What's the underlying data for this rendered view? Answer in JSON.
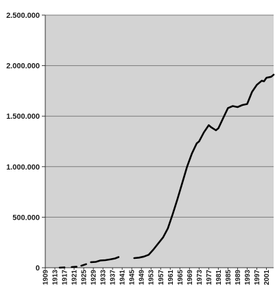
{
  "chart_data": {
    "type": "line",
    "title": "",
    "xlabel": "",
    "ylabel": "",
    "ylim": [
      0,
      2500000
    ],
    "y_ticks": [
      0,
      500000,
      1000000,
      1500000,
      2000000,
      2500000
    ],
    "y_tick_labels": [
      "0",
      "500.000",
      "1.000.000",
      "1.500.000",
      "2.000.000",
      "2.500.000"
    ],
    "x_tick_labels": [
      "1909",
      "1913",
      "1917",
      "1921",
      "1925",
      "1929",
      "1933",
      "1937",
      "1941",
      "1945",
      "1949",
      "1953",
      "1957",
      "1961",
      "1965",
      "1969",
      "1973",
      "1977",
      "1981",
      "1985",
      "1989",
      "1993",
      "1997",
      "2001"
    ],
    "xlim": [
      1909,
      2004
    ],
    "grid": "horizontal",
    "plot_background": "#d3d3d3",
    "line_color": "#000000",
    "series": [
      {
        "segments": [
          [
            [
              1915,
              1000
            ],
            [
              1917,
              3000
            ]
          ],
          [
            [
              1920,
              7000
            ],
            [
              1922,
              10000
            ]
          ],
          [
            [
              1924,
              20000
            ],
            [
              1926,
              35000
            ]
          ],
          [
            [
              1928,
              55000
            ],
            [
              1930,
              58000
            ],
            [
              1932,
              72000
            ],
            [
              1934,
              75000
            ],
            [
              1936,
              82000
            ],
            [
              1938,
              92000
            ],
            [
              1939.5,
              105000
            ]
          ],
          [
            [
              1946,
              95000
            ],
            [
              1948,
              100000
            ],
            [
              1950,
              110000
            ],
            [
              1952,
              128000
            ],
            [
              1954,
              180000
            ],
            [
              1956,
              240000
            ],
            [
              1958,
              300000
            ],
            [
              1960,
              390000
            ],
            [
              1962,
              530000
            ],
            [
              1964,
              680000
            ],
            [
              1966,
              840000
            ],
            [
              1968,
              1000000
            ],
            [
              1970,
              1130000
            ],
            [
              1972,
              1230000
            ],
            [
              1973,
              1250000
            ],
            [
              1975,
              1340000
            ],
            [
              1977,
              1410000
            ],
            [
              1978,
              1390000
            ],
            [
              1980,
              1360000
            ],
            [
              1981,
              1380000
            ],
            [
              1983,
              1480000
            ],
            [
              1985,
              1580000
            ],
            [
              1987,
              1600000
            ],
            [
              1989,
              1590000
            ],
            [
              1991,
              1610000
            ],
            [
              1993,
              1620000
            ],
            [
              1995,
              1740000
            ],
            [
              1997,
              1810000
            ],
            [
              1999,
              1850000
            ],
            [
              2000,
              1845000
            ],
            [
              2001,
              1880000
            ],
            [
              2003,
              1890000
            ],
            [
              2004,
              1910000
            ]
          ]
        ]
      }
    ]
  }
}
